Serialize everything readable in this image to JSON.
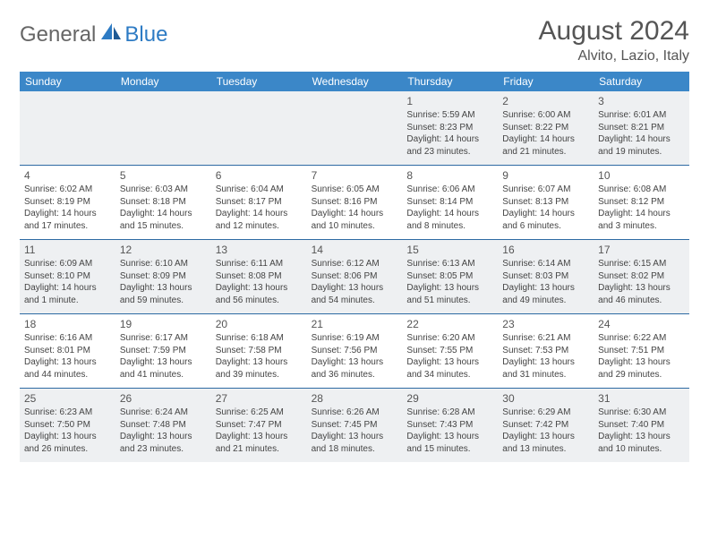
{
  "logo": {
    "part1": "General",
    "part2": "Blue"
  },
  "title": "August 2024",
  "location": "Alvito, Lazio, Italy",
  "colors": {
    "header_bg": "#3b87c8",
    "header_text": "#ffffff",
    "divider": "#2d6aa3",
    "shaded_bg": "#eef0f2",
    "text": "#444444",
    "title_text": "#555555"
  },
  "day_names": [
    "Sunday",
    "Monday",
    "Tuesday",
    "Wednesday",
    "Thursday",
    "Friday",
    "Saturday"
  ],
  "weeks": [
    [
      {
        "blank": true
      },
      {
        "blank": true
      },
      {
        "blank": true
      },
      {
        "blank": true
      },
      {
        "n": "1",
        "sr": "Sunrise: 5:59 AM",
        "ss": "Sunset: 8:23 PM",
        "d1": "Daylight: 14 hours",
        "d2": "and 23 minutes."
      },
      {
        "n": "2",
        "sr": "Sunrise: 6:00 AM",
        "ss": "Sunset: 8:22 PM",
        "d1": "Daylight: 14 hours",
        "d2": "and 21 minutes."
      },
      {
        "n": "3",
        "sr": "Sunrise: 6:01 AM",
        "ss": "Sunset: 8:21 PM",
        "d1": "Daylight: 14 hours",
        "d2": "and 19 minutes."
      }
    ],
    [
      {
        "n": "4",
        "sr": "Sunrise: 6:02 AM",
        "ss": "Sunset: 8:19 PM",
        "d1": "Daylight: 14 hours",
        "d2": "and 17 minutes."
      },
      {
        "n": "5",
        "sr": "Sunrise: 6:03 AM",
        "ss": "Sunset: 8:18 PM",
        "d1": "Daylight: 14 hours",
        "d2": "and 15 minutes."
      },
      {
        "n": "6",
        "sr": "Sunrise: 6:04 AM",
        "ss": "Sunset: 8:17 PM",
        "d1": "Daylight: 14 hours",
        "d2": "and 12 minutes."
      },
      {
        "n": "7",
        "sr": "Sunrise: 6:05 AM",
        "ss": "Sunset: 8:16 PM",
        "d1": "Daylight: 14 hours",
        "d2": "and 10 minutes."
      },
      {
        "n": "8",
        "sr": "Sunrise: 6:06 AM",
        "ss": "Sunset: 8:14 PM",
        "d1": "Daylight: 14 hours",
        "d2": "and 8 minutes."
      },
      {
        "n": "9",
        "sr": "Sunrise: 6:07 AM",
        "ss": "Sunset: 8:13 PM",
        "d1": "Daylight: 14 hours",
        "d2": "and 6 minutes."
      },
      {
        "n": "10",
        "sr": "Sunrise: 6:08 AM",
        "ss": "Sunset: 8:12 PM",
        "d1": "Daylight: 14 hours",
        "d2": "and 3 minutes."
      }
    ],
    [
      {
        "n": "11",
        "sr": "Sunrise: 6:09 AM",
        "ss": "Sunset: 8:10 PM",
        "d1": "Daylight: 14 hours",
        "d2": "and 1 minute."
      },
      {
        "n": "12",
        "sr": "Sunrise: 6:10 AM",
        "ss": "Sunset: 8:09 PM",
        "d1": "Daylight: 13 hours",
        "d2": "and 59 minutes."
      },
      {
        "n": "13",
        "sr": "Sunrise: 6:11 AM",
        "ss": "Sunset: 8:08 PM",
        "d1": "Daylight: 13 hours",
        "d2": "and 56 minutes."
      },
      {
        "n": "14",
        "sr": "Sunrise: 6:12 AM",
        "ss": "Sunset: 8:06 PM",
        "d1": "Daylight: 13 hours",
        "d2": "and 54 minutes."
      },
      {
        "n": "15",
        "sr": "Sunrise: 6:13 AM",
        "ss": "Sunset: 8:05 PM",
        "d1": "Daylight: 13 hours",
        "d2": "and 51 minutes."
      },
      {
        "n": "16",
        "sr": "Sunrise: 6:14 AM",
        "ss": "Sunset: 8:03 PM",
        "d1": "Daylight: 13 hours",
        "d2": "and 49 minutes."
      },
      {
        "n": "17",
        "sr": "Sunrise: 6:15 AM",
        "ss": "Sunset: 8:02 PM",
        "d1": "Daylight: 13 hours",
        "d2": "and 46 minutes."
      }
    ],
    [
      {
        "n": "18",
        "sr": "Sunrise: 6:16 AM",
        "ss": "Sunset: 8:01 PM",
        "d1": "Daylight: 13 hours",
        "d2": "and 44 minutes."
      },
      {
        "n": "19",
        "sr": "Sunrise: 6:17 AM",
        "ss": "Sunset: 7:59 PM",
        "d1": "Daylight: 13 hours",
        "d2": "and 41 minutes."
      },
      {
        "n": "20",
        "sr": "Sunrise: 6:18 AM",
        "ss": "Sunset: 7:58 PM",
        "d1": "Daylight: 13 hours",
        "d2": "and 39 minutes."
      },
      {
        "n": "21",
        "sr": "Sunrise: 6:19 AM",
        "ss": "Sunset: 7:56 PM",
        "d1": "Daylight: 13 hours",
        "d2": "and 36 minutes."
      },
      {
        "n": "22",
        "sr": "Sunrise: 6:20 AM",
        "ss": "Sunset: 7:55 PM",
        "d1": "Daylight: 13 hours",
        "d2": "and 34 minutes."
      },
      {
        "n": "23",
        "sr": "Sunrise: 6:21 AM",
        "ss": "Sunset: 7:53 PM",
        "d1": "Daylight: 13 hours",
        "d2": "and 31 minutes."
      },
      {
        "n": "24",
        "sr": "Sunrise: 6:22 AM",
        "ss": "Sunset: 7:51 PM",
        "d1": "Daylight: 13 hours",
        "d2": "and 29 minutes."
      }
    ],
    [
      {
        "n": "25",
        "sr": "Sunrise: 6:23 AM",
        "ss": "Sunset: 7:50 PM",
        "d1": "Daylight: 13 hours",
        "d2": "and 26 minutes."
      },
      {
        "n": "26",
        "sr": "Sunrise: 6:24 AM",
        "ss": "Sunset: 7:48 PM",
        "d1": "Daylight: 13 hours",
        "d2": "and 23 minutes."
      },
      {
        "n": "27",
        "sr": "Sunrise: 6:25 AM",
        "ss": "Sunset: 7:47 PM",
        "d1": "Daylight: 13 hours",
        "d2": "and 21 minutes."
      },
      {
        "n": "28",
        "sr": "Sunrise: 6:26 AM",
        "ss": "Sunset: 7:45 PM",
        "d1": "Daylight: 13 hours",
        "d2": "and 18 minutes."
      },
      {
        "n": "29",
        "sr": "Sunrise: 6:28 AM",
        "ss": "Sunset: 7:43 PM",
        "d1": "Daylight: 13 hours",
        "d2": "and 15 minutes."
      },
      {
        "n": "30",
        "sr": "Sunrise: 6:29 AM",
        "ss": "Sunset: 7:42 PM",
        "d1": "Daylight: 13 hours",
        "d2": "and 13 minutes."
      },
      {
        "n": "31",
        "sr": "Sunrise: 6:30 AM",
        "ss": "Sunset: 7:40 PM",
        "d1": "Daylight: 13 hours",
        "d2": "and 10 minutes."
      }
    ]
  ]
}
